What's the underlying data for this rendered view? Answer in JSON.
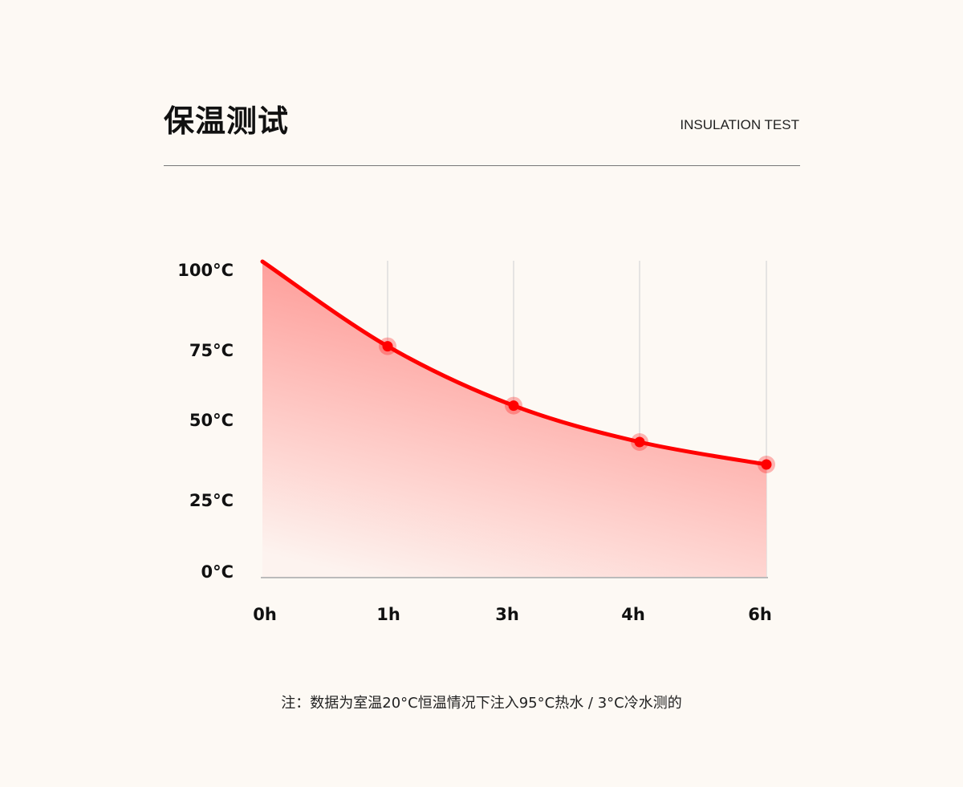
{
  "header": {
    "title": "保温测试",
    "subtitle": "INSULATION TEST"
  },
  "chart_data": {
    "type": "area",
    "categories": [
      "0h",
      "1h",
      "3h",
      "4h",
      "6h"
    ],
    "values": [
      100,
      76,
      55,
      43,
      36
    ],
    "yticks": [
      "0°C",
      "25°C",
      "50°C",
      "75°C",
      "100°C"
    ],
    "ylim": [
      0,
      100
    ],
    "grid": "vertical",
    "colors": {
      "line": "#ff0000",
      "fill_top": "#ff8a86",
      "fill_bottom": "#fdf3ef",
      "grid": "#dddddd",
      "axis": "#bbbbbb"
    }
  },
  "note": "注：数据为室温20°C恒温情况下注入95°C热水 / 3°C冷水测的"
}
